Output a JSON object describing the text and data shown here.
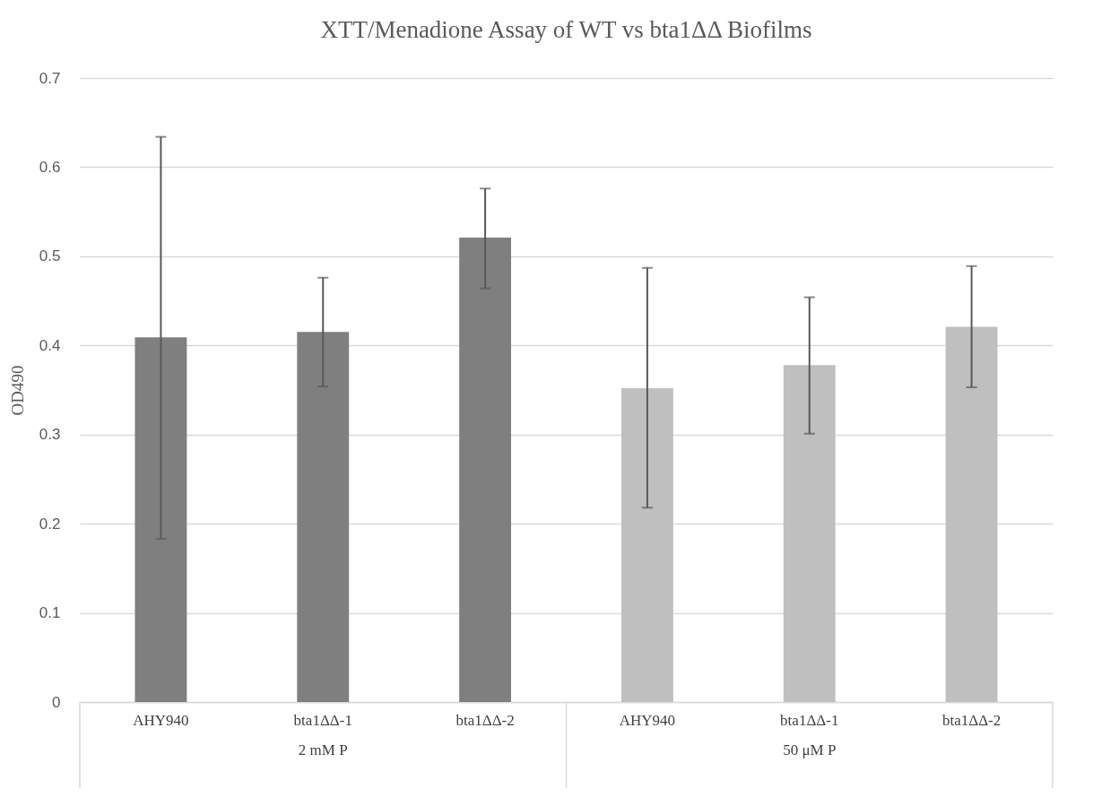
{
  "chart_data": {
    "type": "bar",
    "title": "XTT/Menadione Assay of WT vs bta1ΔΔ Biofilms",
    "ylabel": "OD490",
    "categories": [
      "AHY940",
      "bta1ΔΔ-1",
      "bta1ΔΔ-2",
      "AHY940",
      "bta1ΔΔ-1",
      "bta1ΔΔ-2"
    ],
    "values": [
      0.409,
      0.415,
      0.521,
      0.352,
      0.378,
      0.421
    ],
    "colors": [
      "#7f7f7f",
      "#7f7f7f",
      "#7f7f7f",
      "#bfbfbf",
      "#bfbfbf",
      "#bfbfbf"
    ],
    "errors": [
      [
        0.183,
        0.634
      ],
      [
        0.354,
        0.476
      ],
      [
        0.464,
        0.576
      ],
      [
        0.218,
        0.487
      ],
      [
        0.301,
        0.454
      ],
      [
        0.353,
        0.489
      ]
    ],
    "annotations": [
      "2 mM P",
      "50 μM P"
    ],
    "ylim": [
      0,
      0.7
    ],
    "yticks": [
      0,
      0.1,
      0.2,
      0.3,
      0.4,
      0.5,
      0.6,
      0.7
    ],
    "grid": true
  }
}
